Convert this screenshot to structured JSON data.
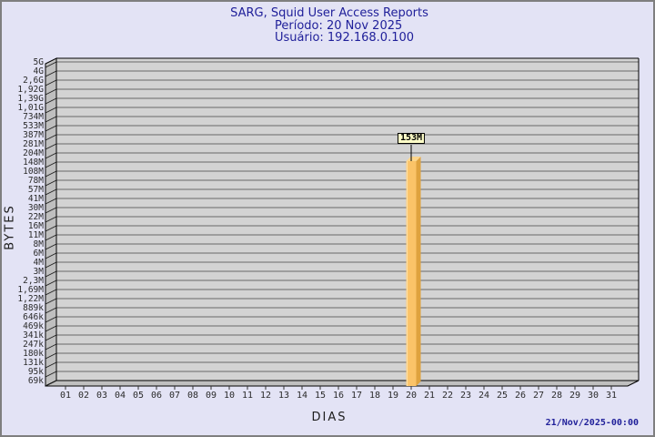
{
  "page": {
    "background": "#e3e3f5",
    "border_color": "#7f7f7f"
  },
  "header": {
    "title": "SARG, Squid User Access Reports",
    "period_line": "Período: 20 Nov 2025",
    "user_line": "Usuário: 192.168.0.100",
    "text_color": "#20209a"
  },
  "footer": {
    "timestamp": "21/Nov/2025-00:00"
  },
  "chart_data": {
    "type": "bar",
    "title": "SARG, Squid User Access Reports",
    "subtitles": [
      "Período: 20 Nov 2025",
      "Usuário: 192.168.0.100"
    ],
    "xlabel": "DIAS",
    "ylabel": "BYTES",
    "y_axis_scale": "logarithmic",
    "grid": true,
    "legend": null,
    "categories": [
      "01",
      "02",
      "03",
      "04",
      "05",
      "06",
      "07",
      "08",
      "09",
      "10",
      "11",
      "12",
      "13",
      "14",
      "15",
      "16",
      "17",
      "18",
      "19",
      "20",
      "21",
      "22",
      "23",
      "24",
      "25",
      "26",
      "27",
      "28",
      "29",
      "30",
      "31"
    ],
    "values": [
      0,
      0,
      0,
      0,
      0,
      0,
      0,
      0,
      0,
      0,
      0,
      0,
      0,
      0,
      0,
      0,
      0,
      0,
      0,
      153000000,
      0,
      0,
      0,
      0,
      0,
      0,
      0,
      0,
      0,
      0,
      0
    ],
    "bars": [
      {
        "day": "20",
        "label": "153M",
        "bytes": 153000000
      }
    ],
    "y_tick_labels": [
      "5G",
      "4G",
      "2,6G",
      "1,92G",
      "1,39G",
      "1,01G",
      "734M",
      "533M",
      "387M",
      "281M",
      "204M",
      "148M",
      "108M",
      "78M",
      "57M",
      "41M",
      "30M",
      "22M",
      "16M",
      "11M",
      "8M",
      "6M",
      "4M",
      "3M",
      "2,3M",
      "1,69M",
      "1,22M",
      "889k",
      "646k",
      "469k",
      "341k",
      "247k",
      "180k",
      "131k",
      "95k",
      "69k"
    ],
    "plot_colors": {
      "background": "#d3d3d3",
      "wall": "#bfbfbf",
      "floor": "#bfbfbf",
      "gridline": "#6a6a6a",
      "frame": "#000000",
      "tick": "#1a1a1a"
    },
    "bar_colors": {
      "front": "#fbc368",
      "side": "#dfa23e",
      "top": "#fdd68c",
      "label_bg": "#ffffc8"
    }
  }
}
